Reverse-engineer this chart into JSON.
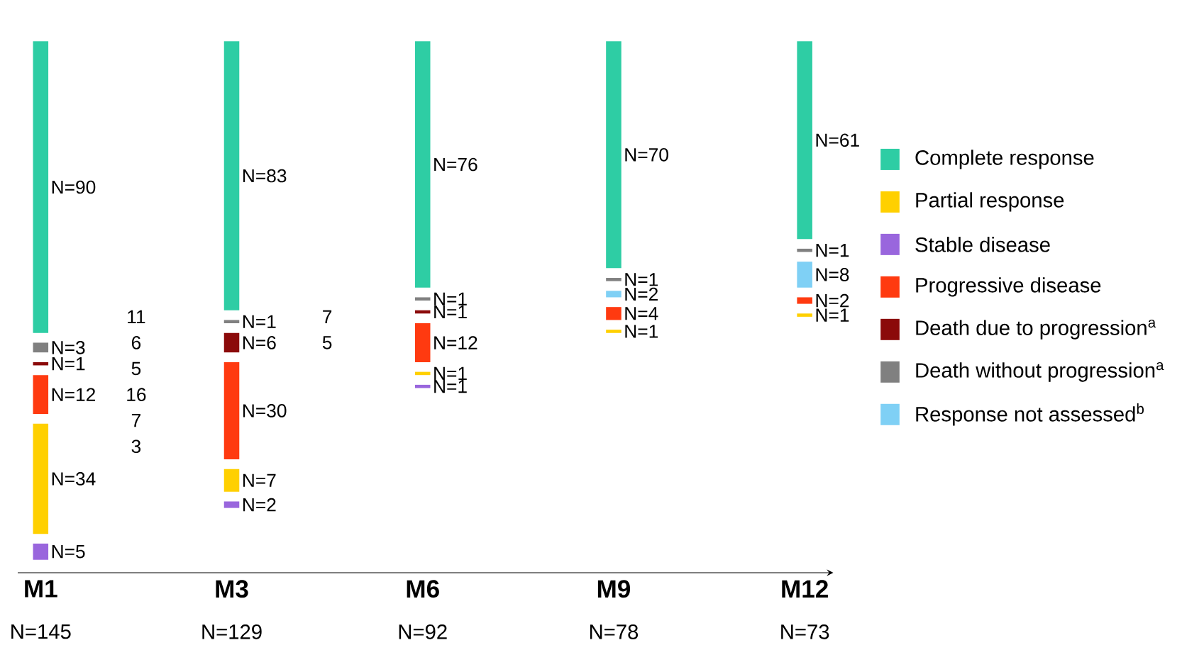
{
  "chart_data": {
    "type": "other",
    "legend": "right",
    "categories": [
      "M1",
      "M3",
      "M6",
      "M9",
      "M12"
    ],
    "totals": [
      "N=145",
      "N=129",
      "N=92",
      "N=78",
      "N=73"
    ],
    "series": [
      {
        "name": "Complete response",
        "color": "#2ecda4",
        "values": [
          90,
          83,
          76,
          70,
          61
        ],
        "value_labels": [
          "N=90",
          "N=83",
          "N=76",
          "N=70",
          "N=61"
        ]
      },
      {
        "name": "Death without progression$^{a}$",
        "color": "#808080",
        "values": [
          3,
          1,
          1,
          1,
          1
        ],
        "value_labels": [
          "N=3",
          "N=1",
          "N=1",
          "N=1",
          "N=1"
        ]
      },
      {
        "name": "Death due to progression$^{a}$",
        "color": "#8b0a0a",
        "values": [
          1,
          6,
          1,
          null,
          null
        ],
        "value_labels": [
          "N=1",
          "N=6",
          "N=1",
          null,
          null
        ]
      },
      {
        "name": "Response not assessed$^{b}$",
        "color": "#7fd0f5",
        "values": [
          null,
          null,
          null,
          2,
          8
        ],
        "value_labels": [
          null,
          null,
          null,
          "N=2",
          "N=8"
        ]
      },
      {
        "name": "Progressive disease",
        "color": "#ff3a10",
        "values": [
          12,
          30,
          12,
          4,
          2
        ],
        "value_labels": [
          "N=12",
          "N=30",
          "N=12",
          "N=4",
          "N=2"
        ]
      },
      {
        "name": "Partial response",
        "color": "#ffd000",
        "values": [
          34,
          7,
          1,
          1,
          1
        ],
        "value_labels": [
          "N=34",
          "N=7",
          "N=1",
          "N=1",
          "N=1"
        ]
      },
      {
        "name": "Stable disease",
        "color": "#9966dd",
        "values": [
          5,
          2,
          1,
          null,
          null
        ],
        "value_labels": [
          "N=5",
          "N=2",
          "N=1",
          null,
          null
        ]
      }
    ],
    "annotations": [
      {
        "text": "11",
        "x": "M1"
      },
      {
        "text": "6",
        "x": "M1"
      },
      {
        "text": "5",
        "x": "M1"
      },
      {
        "text": "16",
        "x": "M1"
      },
      {
        "text": "7",
        "x": "M1"
      },
      {
        "text": "3",
        "x": "M1"
      },
      {
        "text": "7",
        "x": "M3"
      },
      {
        "text": "5",
        "x": "M3"
      }
    ]
  }
}
